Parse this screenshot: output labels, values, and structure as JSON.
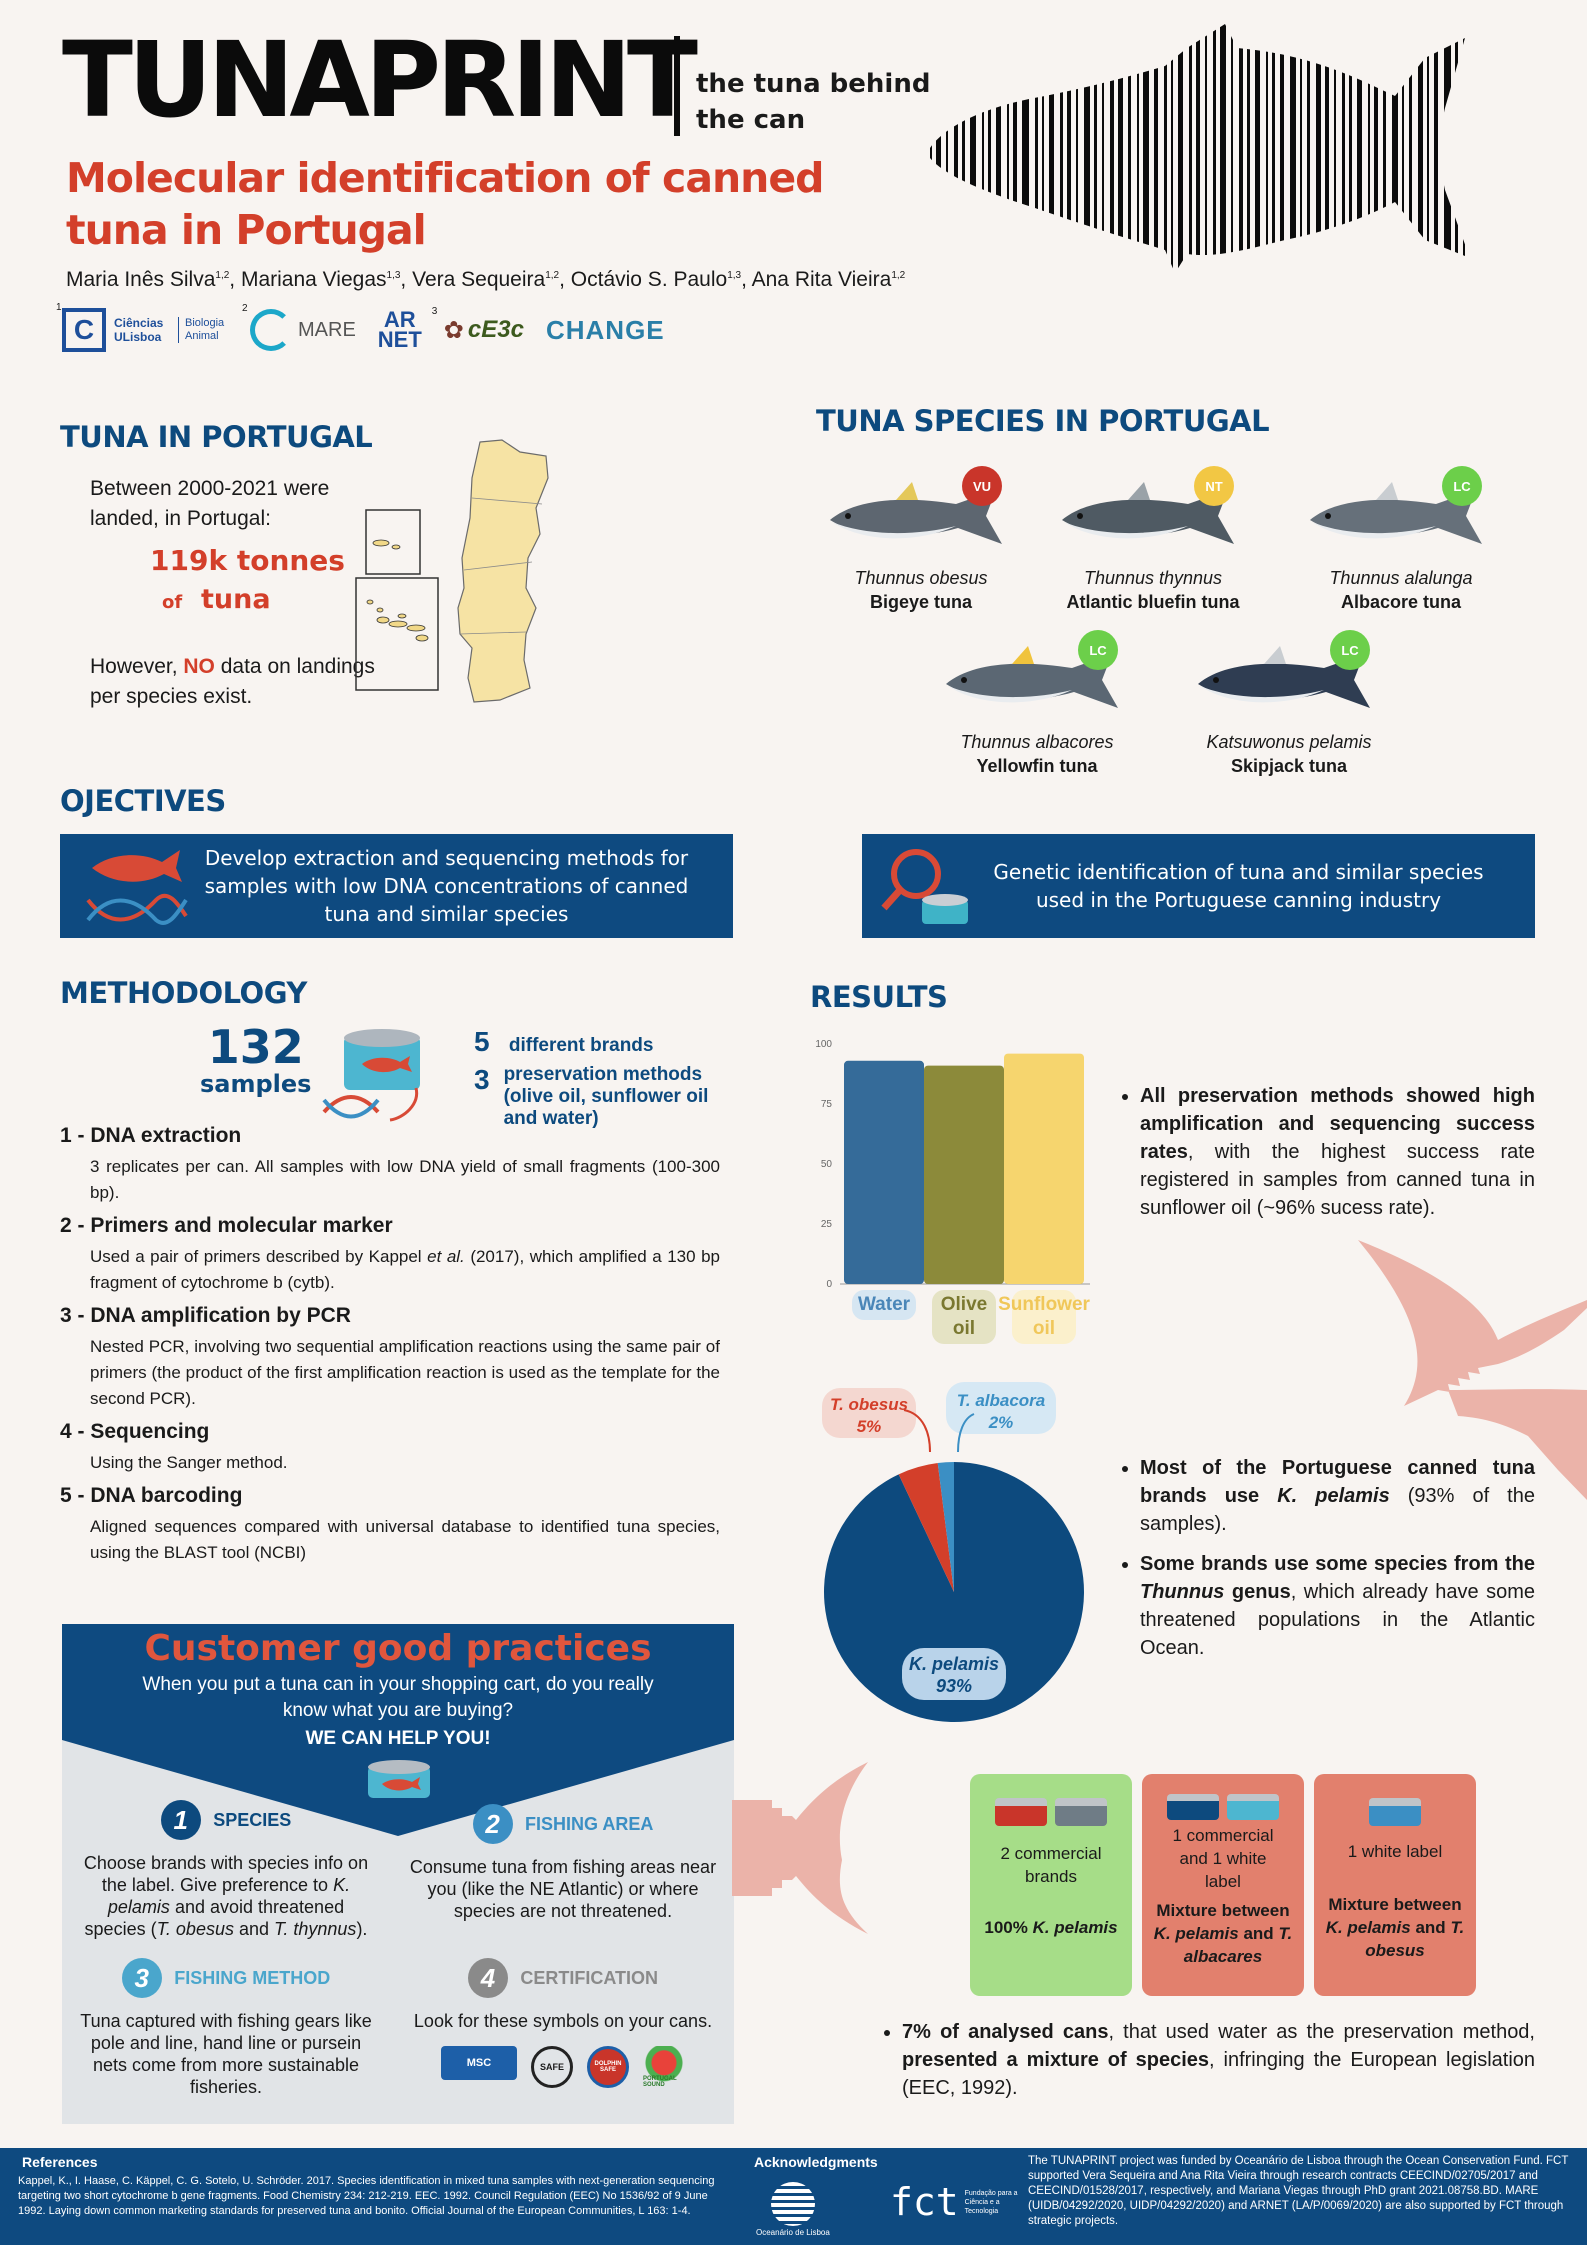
{
  "header": {
    "title": "TUNAPRINT",
    "tagline": "the tuna behind the can",
    "subtitle": "Molecular identification of canned tuna in Portugal",
    "authors": [
      {
        "name": "Maria Inês Silva",
        "aff": "1,2"
      },
      {
        "name": "Mariana Viegas",
        "aff": "1,3"
      },
      {
        "name": "Vera Sequeira",
        "aff": "1,2"
      },
      {
        "name": "Octávio S. Paulo",
        "aff": "1,3"
      },
      {
        "name": "Ana Rita Vieira",
        "aff": "1,2"
      }
    ],
    "logos": {
      "ciencias": "Ciências ULisboa",
      "bio": "Biologia Animal",
      "mare": "MARE",
      "arnet_top": "AR",
      "arnet_bottom": "NET",
      "ce3c": "cE3c",
      "change": "CHANGE",
      "aff1": "1",
      "aff2": "2",
      "aff3": "3"
    }
  },
  "tuna_portugal": {
    "heading": "TUNA IN PORTUGAL",
    "intro": "Between 2000-2021 were landed, in Portugal:",
    "amount": "119k tonnes",
    "of": "of",
    "tuna": "tuna",
    "however": "However,",
    "no": "NO",
    "rest": "data on landings per species exist."
  },
  "species": {
    "heading": "TUNA SPECIES IN PORTUGAL",
    "items": [
      {
        "latin": "Thunnus obesus",
        "common": "Bigeye tuna",
        "status": "VU",
        "color": "#c9352a"
      },
      {
        "latin": "Thunnus thynnus",
        "common": "Atlantic bluefin tuna",
        "status": "NT",
        "color": "#f2c744"
      },
      {
        "latin": "Thunnus alalunga",
        "common": "Albacore tuna",
        "status": "LC",
        "color": "#6ccf4a"
      },
      {
        "latin": "Thunnus albacores",
        "common": "Yellowfin tuna",
        "status": "LC",
        "color": "#6ccf4a"
      },
      {
        "latin": "Katsuwonus pelamis",
        "common": "Skipjack tuna",
        "status": "LC",
        "color": "#6ccf4a"
      }
    ]
  },
  "objectives": {
    "heading": "OJECTIVES",
    "obj1": "Develop extraction and sequencing methods for samples with low DNA concentrations of canned tuna and similar species",
    "obj2": "Genetic identification of tuna and similar species used in the Portuguese canning industry"
  },
  "methodology": {
    "heading": "METHODOLOGY",
    "samples_num": "132",
    "samples_label": "samples",
    "brands_num": "5",
    "brands_label": "different brands",
    "pres_num": "3",
    "pres_label": "preservation methods (olive oil, sunflower oil and water)",
    "steps": [
      {
        "title": "1 - DNA extraction",
        "text": "3 replicates per can. All samples with low DNA yield of small fragments (100-300 bp)."
      },
      {
        "title": "2 - Primers and molecular marker",
        "text_a": "Used a pair of primers described by Kappel",
        "text_em": "et al.",
        "text_b": "(2017), which amplified a 130 bp fragment of cytochrome b (cytb)."
      },
      {
        "title": "3 - DNA amplification by PCR",
        "text": "Nested PCR, involving two sequential amplification reactions using the same pair of primers (the product of the first amplification reaction is used as the template for the second PCR)."
      },
      {
        "title": "4 - Sequencing",
        "text": "Using the Sanger method."
      },
      {
        "title": "5 - DNA barcoding",
        "text": "Aligned sequences compared with universal database to identified tuna species, using the BLAST tool (NCBI)"
      }
    ]
  },
  "results": {
    "heading": "RESULTS",
    "bullet1_bold": "All preservation methods showed high amplification and sequencing success rates",
    "bullet1_rest": ", with the highest success rate registered in samples from canned tuna in sunflower oil (~96% sucess rate).",
    "bullet2_bold_a": "Most of the Portuguese canned tuna brands use",
    "bullet2_em": "K. pelamis",
    "bullet2_rest": "(93% of the samples).",
    "bullet3_bold_a": "Some brands use some species from the",
    "bullet3_em": "Thunnus",
    "bullet3_bold_b": "genus",
    "bullet3_rest": ", which already have some threatened populations in the Atlantic Ocean.",
    "bullet4_bold_a": "7% of analysed cans",
    "bullet4_mid": ", that used water as the preservation method,",
    "bullet4_bold_b": "presented a mixture of species",
    "bullet4_rest": ", infringing the European legislation (EEC, 1992).",
    "cards": [
      {
        "count": "2 commercial brands",
        "pct": "100%",
        "species": "K. pelamis",
        "bg": "#a6dd88"
      },
      {
        "count": "1 commercial and 1 white label",
        "mix": "Mixture between",
        "sp1": "K. pelamis",
        "and": "and",
        "sp2": "T. albacares",
        "bg": "#e2806d"
      },
      {
        "count": "1 white label",
        "mix": "Mixture between",
        "sp1": "K. pelamis",
        "and": "and",
        "sp2": "T. obesus",
        "bg": "#e2806d"
      }
    ]
  },
  "chart_data": [
    {
      "type": "bar",
      "categories": [
        "Water",
        "Olive oil",
        "Sunflower oil"
      ],
      "values": [
        93,
        91,
        96
      ],
      "colors": [
        "#356b99",
        "#8c8a3a",
        "#f6d56e"
      ],
      "ylim": [
        0,
        100
      ],
      "yticks": [
        0,
        25,
        50,
        75,
        100
      ]
    },
    {
      "type": "pie",
      "labels": [
        "K. pelamis",
        "T. obesus",
        "T. albacora"
      ],
      "values": [
        93,
        5,
        2
      ],
      "display": [
        "93%",
        "5%",
        "2%"
      ],
      "colors": [
        "#0d4a7e",
        "#d33f2a",
        "#3b8fc4"
      ]
    }
  ],
  "customer": {
    "heading": "Customer good practices",
    "question": "When you put a tuna can in your shopping cart, do you really know what you are buying?",
    "help": "WE CAN HELP YOU!",
    "items": [
      {
        "num": "1",
        "title": "SPECIES",
        "color": "#0d4a7e"
      },
      {
        "num": "2",
        "title": "FISHING AREA",
        "color": "#3b8fc4",
        "text": "Consume tuna from fishing areas near you (like the NE Atlantic) or where species are not threatened."
      },
      {
        "num": "3",
        "title": "FISHING METHOD",
        "color": "#4aa6cc",
        "text": "Tuna captured with fishing gears like pole and line, hand line or pursein nets come from more sustainable fisheries."
      },
      {
        "num": "4",
        "title": "CERTIFICATION",
        "color": "#8a8a8a",
        "text": "Look for these symbols on your cans."
      }
    ],
    "species_text_a": "Choose brands with species info on the label. Give preference to",
    "species_em1": "K. pelamis",
    "species_text_b": "and avoid threatened species (",
    "species_em2": "T. obesus",
    "species_and": "and",
    "species_em3": "T. thynnus",
    "species_end": ").",
    "cert_labels": [
      "MSC",
      "SAFE",
      "DOLPHIN SAFE",
      "PORTUGAL SOUND"
    ]
  },
  "footer": {
    "ref_heading": "References",
    "refs": "Kappel, K., I. Haase, C. Käppel, C. G. Sotelo, U. Schröder. 2017. Species identification in mixed tuna samples with next-generation sequencing targeting two short cytochrome b gene fragments. Food Chemistry 234: 212-219. EEC. 1992. Council Regulation (EEC) No 1536/92 of 9 June 1992. Laying down common marketing standards for preserved tuna and bonito. Official Journal of the European Communities, L 163: 1-4.",
    "ack_heading": "Acknowledgments",
    "oceanario": "Oceanário de Lisboa",
    "fct": "fct",
    "fct_sub": "Fundação para a Ciência e a Tecnologia",
    "funding": "The TUNAPRINT project was funded by Oceanário de Lisboa through the Ocean Conservation Fund. FCT supported Vera Sequeira and Ana Rita Vieira through research contracts CEECIND/02705/2017 and CEECIND/01528/2017, respectively, and Mariana Viegas through PhD grant 2021.08758.BD.  MARE (UIDB/04292/2020, UIDP/04292/2020) and ARNET (LA/P/0069/2020) are also supported by FCT through strategic projects."
  }
}
